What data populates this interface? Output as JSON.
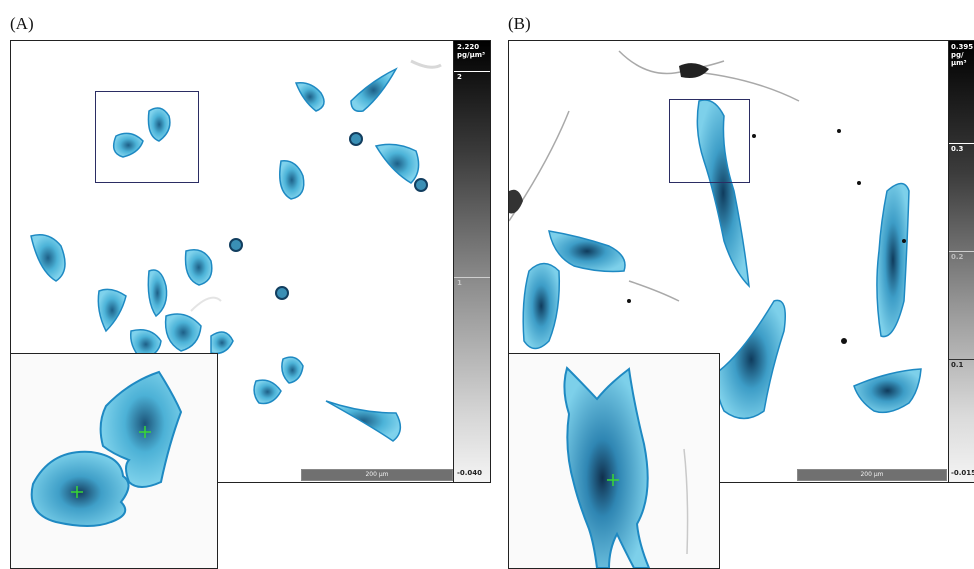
{
  "panels": {
    "a": {
      "label": "(A)",
      "colorbar": {
        "max": "2.220",
        "unit": "pg/µm³",
        "tick_upper": "2",
        "tick_mid": "1",
        "min": "-0.040"
      },
      "scalebar": "200 µm",
      "inset_marker": "+"
    },
    "b": {
      "label": "(B)",
      "colorbar": {
        "max": "0.395",
        "unit": "pg/µm³",
        "tick_upper": "0.3",
        "tick_mid": "0.2",
        "tick_lower": "0.1",
        "min": "-0.015"
      },
      "scalebar": "200 µm",
      "inset_marker": "+"
    }
  },
  "colors": {
    "cell_fill": "#5cc3e3",
    "cell_outline": "#1e89c2",
    "cell_core": "#10456b",
    "marker": "#39d833",
    "zoom_box": "#2b2d63"
  }
}
